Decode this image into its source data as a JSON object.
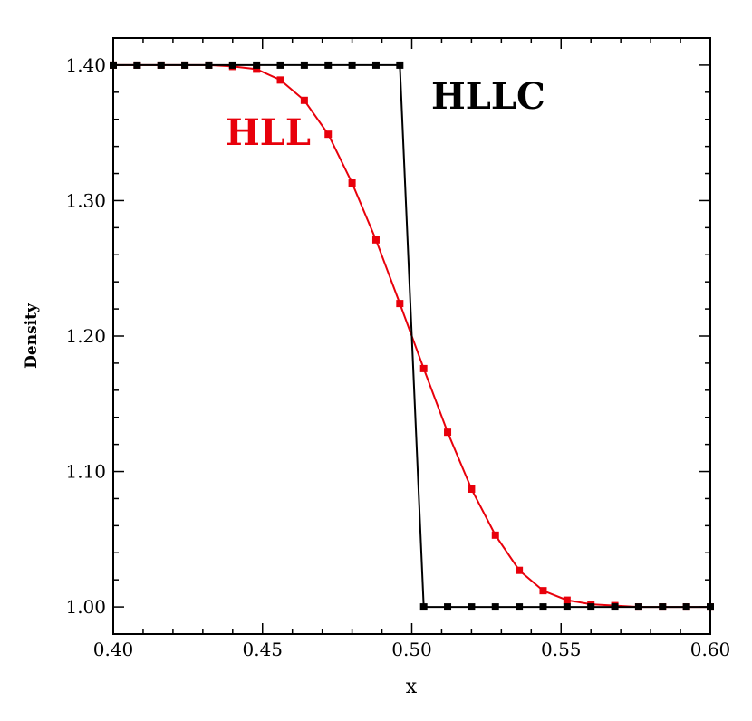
{
  "chart_data": {
    "type": "line",
    "xlabel": "x",
    "ylabel": "Density",
    "xlim": [
      0.4,
      0.6
    ],
    "ylim": [
      0.98,
      1.42
    ],
    "xticks": [
      "0.40",
      "0.45",
      "0.50",
      "0.55",
      "0.60"
    ],
    "yticks": [
      "1.00",
      "1.10",
      "1.20",
      "1.30",
      "1.40"
    ],
    "grid": false,
    "series": [
      {
        "name": "HLL",
        "color": "#e8000b",
        "label_color": "#e8000b",
        "x": [
          0.4,
          0.408,
          0.416,
          0.424,
          0.432,
          0.44,
          0.448,
          0.456,
          0.464,
          0.472,
          0.48,
          0.488,
          0.496,
          0.504,
          0.512,
          0.52,
          0.528,
          0.536,
          0.544,
          0.552,
          0.56,
          0.568,
          0.576,
          0.584,
          0.592,
          0.6
        ],
        "y": [
          1.4,
          1.4,
          1.4,
          1.4,
          1.4,
          1.399,
          1.397,
          1.389,
          1.374,
          1.349,
          1.313,
          1.271,
          1.224,
          1.176,
          1.129,
          1.087,
          1.053,
          1.027,
          1.012,
          1.005,
          1.002,
          1.001,
          1.0,
          1.0,
          1.0,
          1.0
        ]
      },
      {
        "name": "HLLC",
        "color": "#000000",
        "label_color": "#000000",
        "x": [
          0.4,
          0.408,
          0.416,
          0.424,
          0.432,
          0.44,
          0.448,
          0.456,
          0.464,
          0.472,
          0.48,
          0.488,
          0.496,
          0.504,
          0.512,
          0.52,
          0.528,
          0.536,
          0.544,
          0.552,
          0.56,
          0.568,
          0.576,
          0.584,
          0.592,
          0.6
        ],
        "y": [
          1.4,
          1.4,
          1.4,
          1.4,
          1.4,
          1.4,
          1.4,
          1.4,
          1.4,
          1.4,
          1.4,
          1.4,
          1.4,
          1.0,
          1.0,
          1.0,
          1.0,
          1.0,
          1.0,
          1.0,
          1.0,
          1.0,
          1.0,
          1.0,
          1.0,
          1.0
        ]
      }
    ]
  }
}
